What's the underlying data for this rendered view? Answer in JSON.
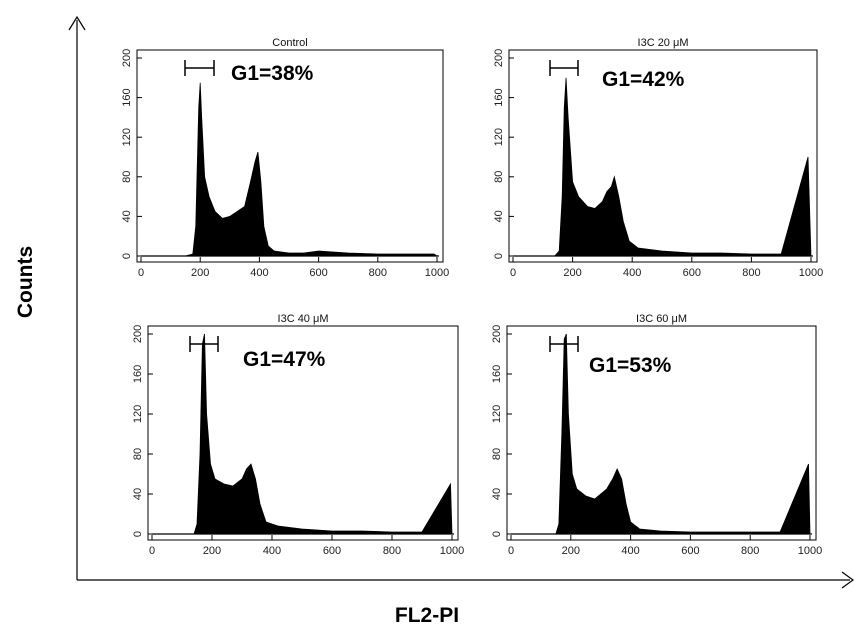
{
  "figure": {
    "xlabel": "FL2-PI",
    "ylabel": "Counts"
  },
  "chart_data": [
    {
      "type": "area",
      "title": "Control",
      "annotation": "G1=38%",
      "xlim": [
        0,
        1000
      ],
      "ylim": [
        0,
        200
      ],
      "xticks": [
        0,
        200,
        400,
        600,
        800,
        1000
      ],
      "yticks": [
        0,
        40,
        80,
        120,
        160,
        200
      ],
      "x": [
        0,
        150,
        175,
        185,
        195,
        200,
        205,
        215,
        230,
        250,
        275,
        300,
        325,
        350,
        370,
        385,
        395,
        405,
        415,
        430,
        450,
        500,
        550,
        600,
        700,
        800,
        900,
        990,
        1000
      ],
      "values": [
        0,
        0,
        2,
        30,
        150,
        175,
        140,
        80,
        60,
        45,
        38,
        40,
        45,
        50,
        75,
        95,
        105,
        75,
        30,
        10,
        5,
        3,
        3,
        5,
        3,
        2,
        2,
        2,
        0
      ]
    },
    {
      "type": "area",
      "title": "I3C  20 μM",
      "annotation": "G1=42%",
      "xlim": [
        0,
        1000
      ],
      "ylim": [
        0,
        200
      ],
      "xticks": [
        0,
        200,
        400,
        600,
        800,
        1000
      ],
      "yticks": [
        0,
        40,
        80,
        120,
        160,
        200
      ],
      "x": [
        0,
        140,
        155,
        165,
        172,
        178,
        185,
        200,
        220,
        250,
        275,
        300,
        315,
        330,
        340,
        355,
        370,
        390,
        420,
        500,
        600,
        700,
        800,
        900,
        990,
        1000
      ],
      "values": [
        0,
        0,
        5,
        60,
        150,
        180,
        140,
        75,
        60,
        50,
        48,
        55,
        65,
        70,
        80,
        60,
        35,
        15,
        8,
        5,
        3,
        3,
        2,
        2,
        100,
        0
      ]
    },
    {
      "type": "area",
      "title": "I3C  40 μM",
      "annotation": "G1=47%",
      "xlim": [
        0,
        1000
      ],
      "ylim": [
        0,
        200
      ],
      "xticks": [
        0,
        200,
        400,
        600,
        800,
        1000
      ],
      "yticks": [
        0,
        40,
        80,
        120,
        160,
        200
      ],
      "x": [
        0,
        140,
        150,
        160,
        168,
        175,
        182,
        195,
        210,
        240,
        270,
        300,
        315,
        330,
        345,
        360,
        380,
        420,
        500,
        600,
        700,
        800,
        900,
        995,
        1000
      ],
      "values": [
        0,
        0,
        10,
        80,
        190,
        200,
        120,
        70,
        55,
        50,
        48,
        55,
        65,
        70,
        55,
        30,
        12,
        8,
        5,
        3,
        3,
        2,
        2,
        50,
        0
      ]
    },
    {
      "type": "area",
      "title": "I3C  60 μM",
      "annotation": "G1=53%",
      "xlim": [
        0,
        1000
      ],
      "ylim": [
        0,
        200
      ],
      "xticks": [
        0,
        200,
        400,
        600,
        800,
        1000
      ],
      "yticks": [
        0,
        40,
        80,
        120,
        160,
        200
      ],
      "x": [
        0,
        150,
        160,
        170,
        178,
        185,
        192,
        205,
        220,
        250,
        280,
        300,
        320,
        340,
        355,
        370,
        385,
        400,
        430,
        500,
        600,
        700,
        800,
        900,
        995,
        1000
      ],
      "values": [
        0,
        0,
        10,
        100,
        195,
        200,
        120,
        60,
        45,
        38,
        35,
        40,
        45,
        55,
        65,
        55,
        30,
        12,
        5,
        3,
        2,
        2,
        2,
        2,
        70,
        0
      ]
    }
  ]
}
